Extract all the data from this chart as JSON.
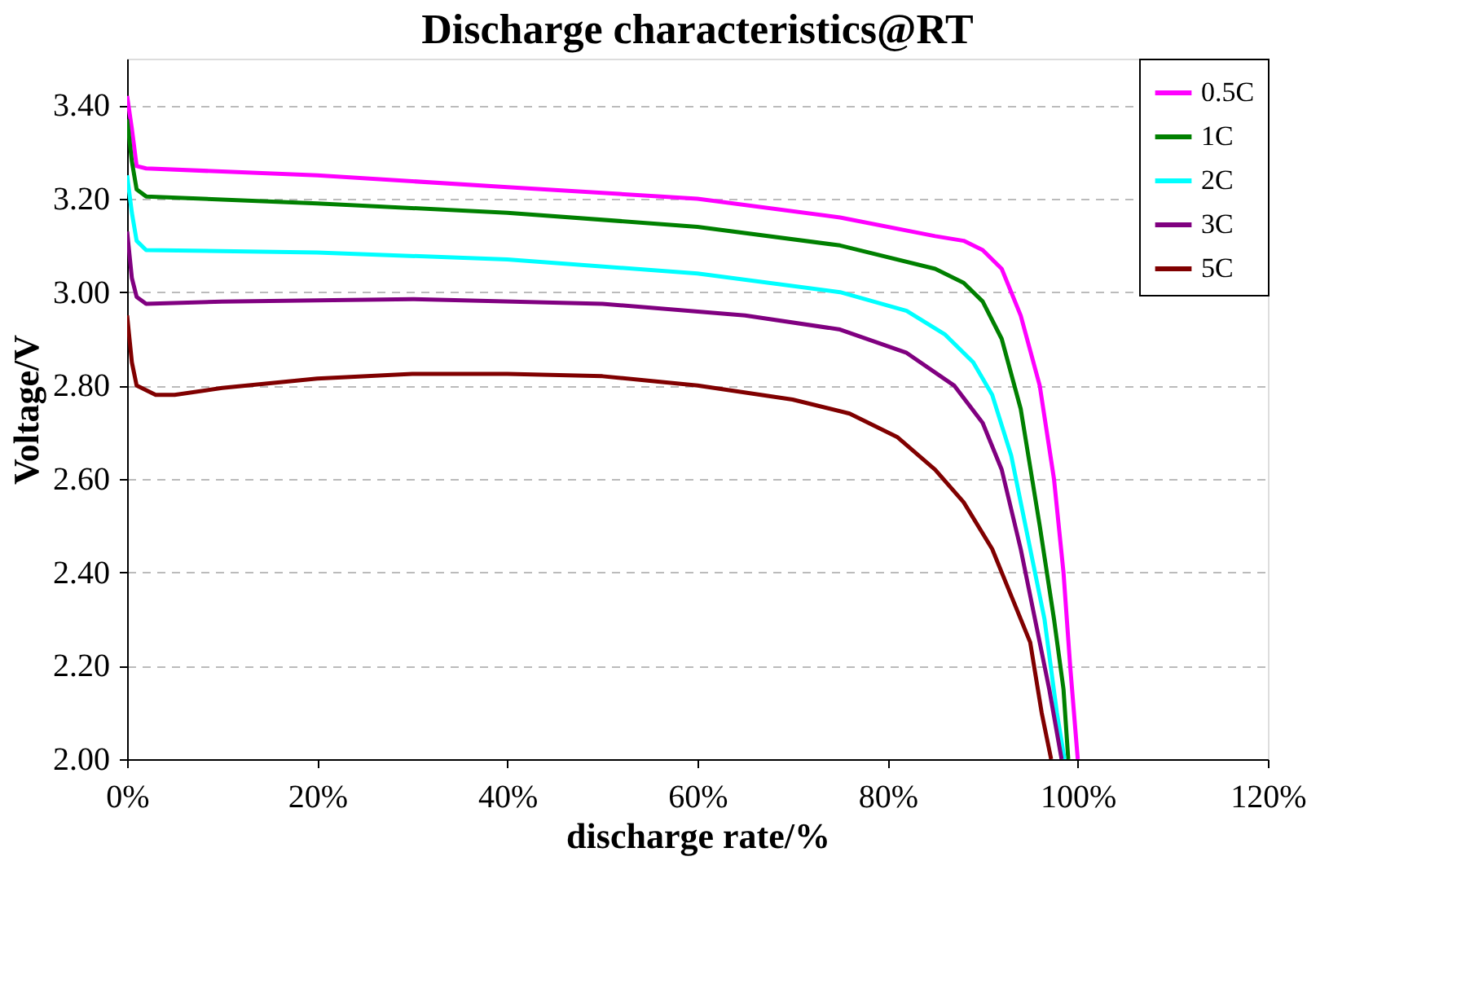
{
  "chart_data": {
    "type": "line",
    "title": "Discharge characteristics@RT",
    "xlabel": "discharge rate/%",
    "ylabel": "Voltage/V",
    "xlim": [
      0,
      120
    ],
    "xticks": [
      {
        "value": 0,
        "label": "0%"
      },
      {
        "value": 20,
        "label": "20%"
      },
      {
        "value": 40,
        "label": "40%"
      },
      {
        "value": 60,
        "label": "60%"
      },
      {
        "value": 80,
        "label": "80%"
      },
      {
        "value": 100,
        "label": "100%"
      },
      {
        "value": 120,
        "label": "120%"
      }
    ],
    "ylim": [
      2.0,
      3.5
    ],
    "yticks": [
      {
        "value": 2.0,
        "label": "2.00"
      },
      {
        "value": 2.2,
        "label": "2.20"
      },
      {
        "value": 2.4,
        "label": "2.40"
      },
      {
        "value": 2.6,
        "label": "2.60"
      },
      {
        "value": 2.8,
        "label": "2.80"
      },
      {
        "value": 3.0,
        "label": "3.00"
      },
      {
        "value": 3.2,
        "label": "3.20"
      },
      {
        "value": 3.4,
        "label": "3.40"
      }
    ],
    "grid": "y",
    "legend": "top right",
    "marker": "none",
    "line_style": "solid",
    "series": [
      {
        "name": "0.5C",
        "color": "#ff00ff",
        "x": [
          0,
          0.5,
          1,
          2,
          20,
          40,
          60,
          75,
          85,
          88,
          90,
          92,
          94,
          96,
          97.5,
          98.5,
          99.2,
          100
        ],
        "values": [
          3.42,
          3.35,
          3.27,
          3.265,
          3.25,
          3.225,
          3.2,
          3.16,
          3.12,
          3.11,
          3.09,
          3.05,
          2.95,
          2.8,
          2.6,
          2.4,
          2.2,
          2.0
        ]
      },
      {
        "name": "1C",
        "color": "#008000",
        "x": [
          0,
          0.5,
          1,
          2,
          20,
          40,
          60,
          75,
          85,
          88,
          90,
          92,
          94,
          96,
          97.5,
          98.5,
          99
        ],
        "values": [
          3.37,
          3.28,
          3.22,
          3.205,
          3.19,
          3.17,
          3.14,
          3.1,
          3.05,
          3.02,
          2.98,
          2.9,
          2.75,
          2.5,
          2.3,
          2.15,
          2.0
        ]
      },
      {
        "name": "2C",
        "color": "#00ffff",
        "x": [
          0,
          0.5,
          1,
          2,
          20,
          40,
          60,
          75,
          82,
          86,
          89,
          91,
          93,
          95,
          96.5,
          97.8,
          98.6
        ],
        "values": [
          3.25,
          3.17,
          3.11,
          3.09,
          3.085,
          3.07,
          3.04,
          3.0,
          2.96,
          2.91,
          2.85,
          2.78,
          2.65,
          2.45,
          2.3,
          2.1,
          2.0
        ]
      },
      {
        "name": "3C",
        "color": "#800080",
        "x": [
          0,
          0.5,
          1,
          2,
          10,
          30,
          50,
          65,
          75,
          82,
          87,
          90,
          92,
          94,
          95.5,
          97,
          98.3
        ],
        "values": [
          3.13,
          3.03,
          2.99,
          2.975,
          2.98,
          2.985,
          2.975,
          2.95,
          2.92,
          2.87,
          2.8,
          2.72,
          2.62,
          2.45,
          2.3,
          2.15,
          2.0
        ]
      },
      {
        "name": "5C",
        "color": "#800000",
        "x": [
          0,
          0.5,
          1,
          3,
          5,
          10,
          20,
          30,
          40,
          50,
          60,
          70,
          76,
          81,
          85,
          88,
          91,
          93,
          95,
          96.2,
          97.2
        ],
        "values": [
          2.95,
          2.85,
          2.8,
          2.78,
          2.78,
          2.795,
          2.815,
          2.825,
          2.825,
          2.82,
          2.8,
          2.77,
          2.74,
          2.69,
          2.62,
          2.55,
          2.45,
          2.35,
          2.25,
          2.1,
          2.0
        ]
      }
    ]
  }
}
